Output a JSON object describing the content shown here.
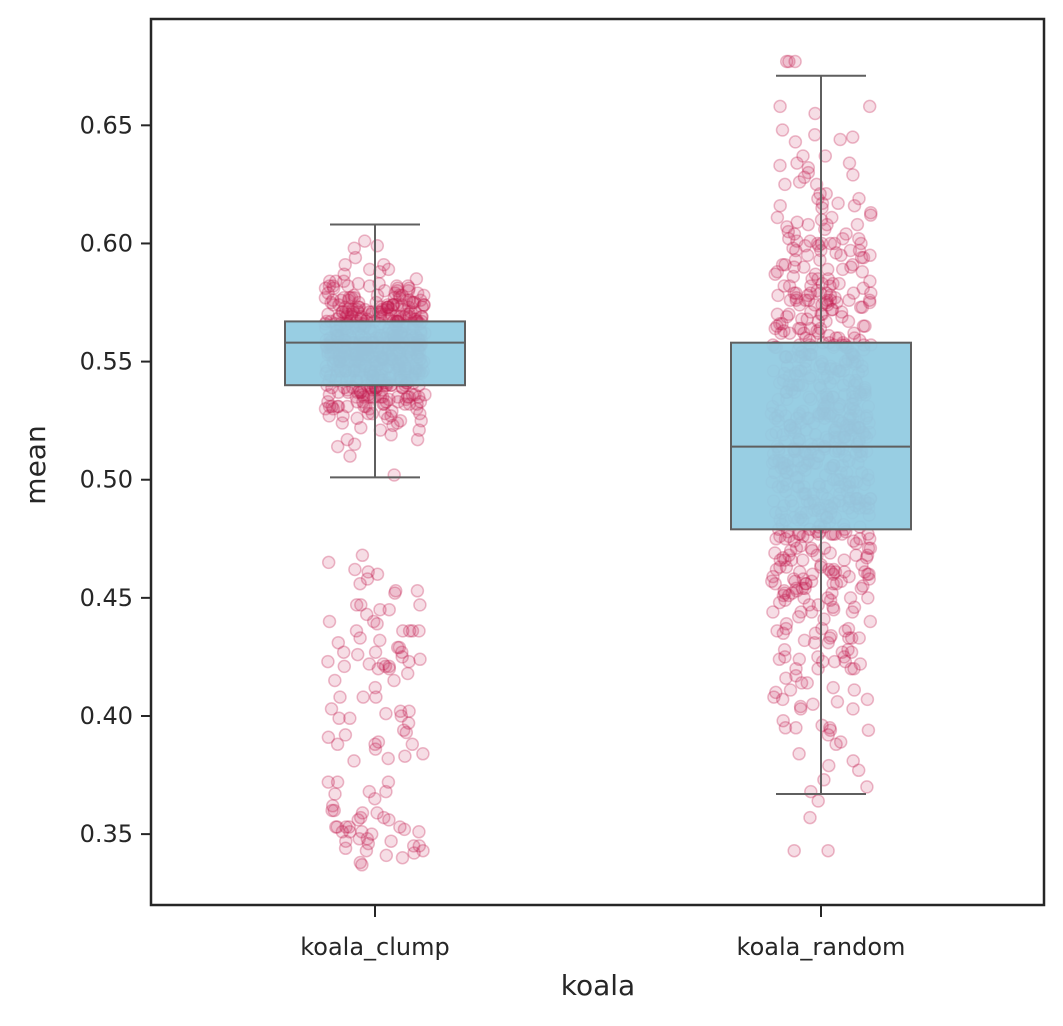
{
  "chart_data": {
    "type": "box",
    "xlabel": "koala",
    "ylabel": "mean",
    "categories": [
      "koala_clump",
      "koala_random"
    ],
    "ylim": [
      0.32,
      0.695
    ],
    "yticks": [
      "0.35",
      "0.40",
      "0.45",
      "0.50",
      "0.55",
      "0.60",
      "0.65"
    ],
    "grid": false,
    "box_color": "#92cbe1",
    "point_color": "#c41e50",
    "line_color": "#5f5f5f",
    "boxes": [
      {
        "name": "koala_clump",
        "q1": 0.54,
        "median": 0.558,
        "q3": 0.567,
        "whisker_low": 0.501,
        "whisker_high": 0.608
      },
      {
        "name": "koala_random",
        "q1": 0.479,
        "median": 0.514,
        "q3": 0.558,
        "whisker_low": 0.367,
        "whisker_high": 0.671
      }
    ],
    "points_per_category": 700
  }
}
